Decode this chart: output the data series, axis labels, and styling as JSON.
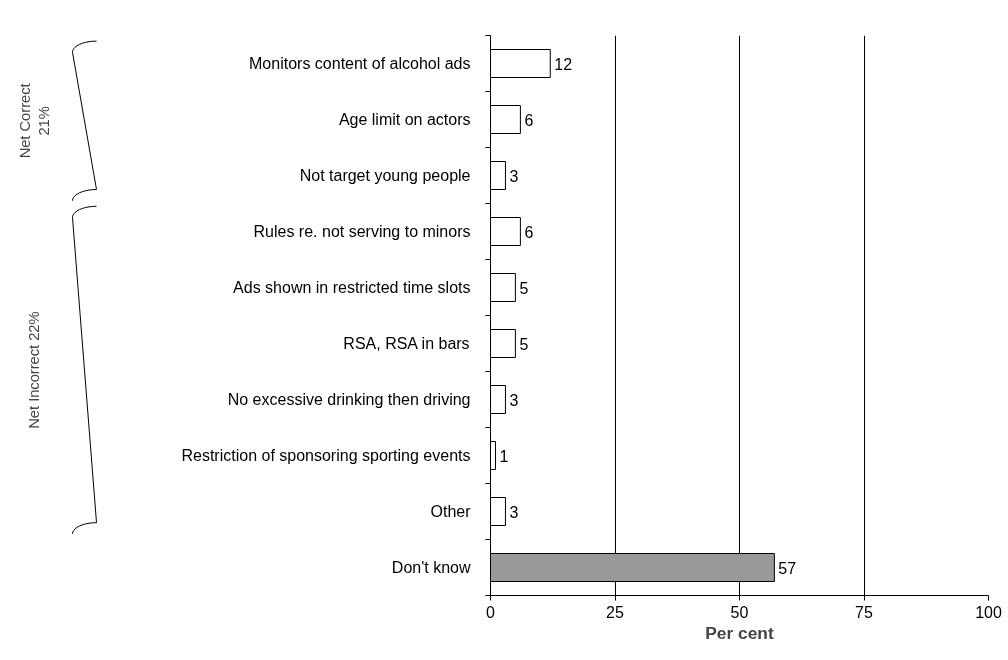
{
  "chart_data": {
    "type": "bar",
    "orientation": "horizontal",
    "categories": [
      "Monitors content of alcohol ads",
      "Age limit on actors",
      "Not target young people",
      "Rules re. not serving to minors",
      "Ads shown in restricted time slots",
      "RSA, RSA in bars",
      "No excessive drinking then driving",
      "Restriction of sponsoring sporting events",
      "Other",
      "Don't know"
    ],
    "values": [
      12,
      6,
      3,
      6,
      5,
      5,
      3,
      1,
      3,
      57
    ],
    "colors": [
      "#ffffff",
      "#ffffff",
      "#ffffff",
      "#ffffff",
      "#ffffff",
      "#ffffff",
      "#ffffff",
      "#ffffff",
      "#ffffff",
      "#999999"
    ],
    "data_labels": true,
    "xlabel": "Per cent",
    "xlim": [
      0,
      100
    ],
    "xticks": [
      0,
      25,
      50,
      75,
      100
    ],
    "grid": "x",
    "annotations": [
      "Net Correct\n21%",
      "Net Incorrect 22%"
    ]
  }
}
